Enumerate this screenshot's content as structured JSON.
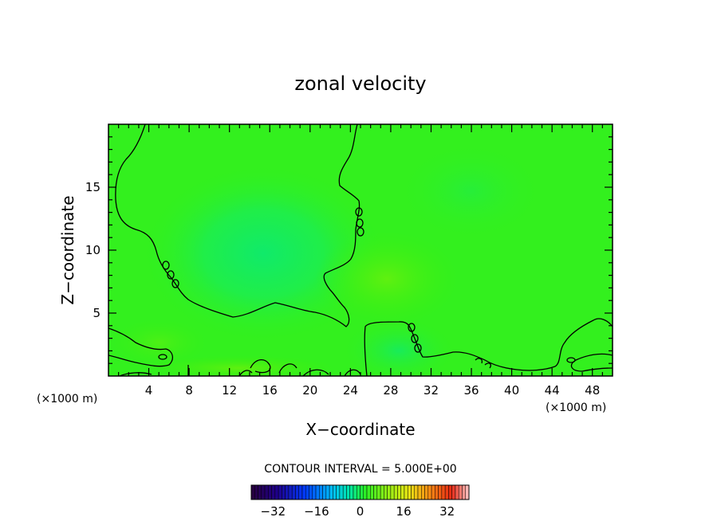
{
  "chart_data": {
    "type": "heatmap",
    "title": "zonal velocity",
    "xlabel": "X−coordinate",
    "ylabel": "Z−coordinate",
    "x_unit_left": "(×1000 m)",
    "x_unit_right": "(×1000 m)",
    "xlim": [
      0,
      50
    ],
    "ylim": [
      0,
      20
    ],
    "xticks": [
      "4",
      "8",
      "12",
      "16",
      "20",
      "24",
      "28",
      "32",
      "36",
      "40",
      "44",
      "48"
    ],
    "xtick_values": [
      4,
      8,
      12,
      16,
      20,
      24,
      28,
      32,
      36,
      40,
      44,
      48
    ],
    "yticks": [
      "5",
      "10",
      "15"
    ],
    "ytick_values": [
      5,
      10,
      15
    ],
    "contour_interval_text": "CONTOUR INTERVAL = 5.000E+00",
    "contour_levels": [
      0
    ],
    "colorbar": {
      "range": [
        -40,
        40
      ],
      "tick_labels": [
        "−32",
        "−16",
        "0",
        "16",
        "32"
      ],
      "tick_values": [
        -32,
        -16,
        0,
        16,
        32
      ]
    },
    "field_notes": "nearly uniform field close to 0; weak negative core near x=16, z=10; weak positive near x=28, z=8"
  }
}
